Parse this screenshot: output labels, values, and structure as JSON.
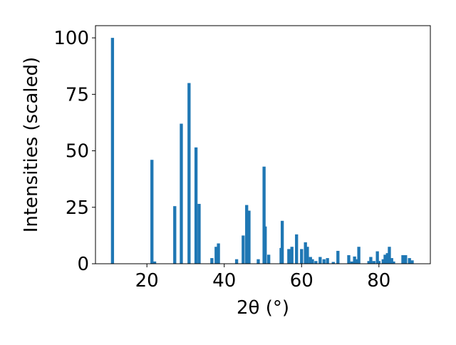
{
  "chart_data": {
    "type": "bar",
    "x_label": "2θ (°)",
    "y_label": "Intensities (scaled)",
    "x": [
      11.1,
      21.3,
      22.0,
      27.2,
      28.9,
      30.9,
      32.7,
      33.5,
      36.8,
      37.9,
      38.5,
      43.2,
      44.9,
      45.8,
      46.4,
      48.8,
      50.3,
      50.6,
      51.5,
      54.7,
      55.0,
      56.7,
      57.5,
      58.7,
      60.0,
      61.0,
      61.5,
      62.3,
      62.8,
      63.7,
      64.8,
      65.8,
      66.7,
      68.2,
      69.4,
      72.2,
      73.0,
      73.7,
      74.1,
      74.8,
      77.4,
      77.9,
      78.7,
      79.6,
      80.0,
      81.1,
      81.6,
      82.2,
      82.7,
      83.3,
      83.8,
      86.2,
      86.9,
      87.9,
      88.6
    ],
    "values": [
      100,
      46,
      1,
      25.5,
      62,
      80,
      51.5,
      26.5,
      2.5,
      7.5,
      9,
      2,
      12.5,
      26,
      23.5,
      2,
      43,
      16.5,
      4,
      7,
      19,
      6.5,
      7.5,
      13,
      6.5,
      9.5,
      7.5,
      3,
      2,
      1.2,
      3,
      2,
      2.5,
      0.8,
      5.7,
      3.8,
      1,
      3.2,
      2,
      7.5,
      1.2,
      3,
      1.2,
      5.5,
      1.2,
      2,
      4,
      4.7,
      7.5,
      2.5,
      1,
      3.8,
      3.8,
      2.5,
      1.5
    ],
    "color": "#1f77b4",
    "xlim": [
      6.7,
      93.3
    ],
    "ylim": [
      0,
      105.4
    ],
    "xticks": [
      20,
      40,
      60,
      80
    ],
    "yticks": [
      0,
      25,
      50,
      75,
      100
    ],
    "grid": false
  }
}
